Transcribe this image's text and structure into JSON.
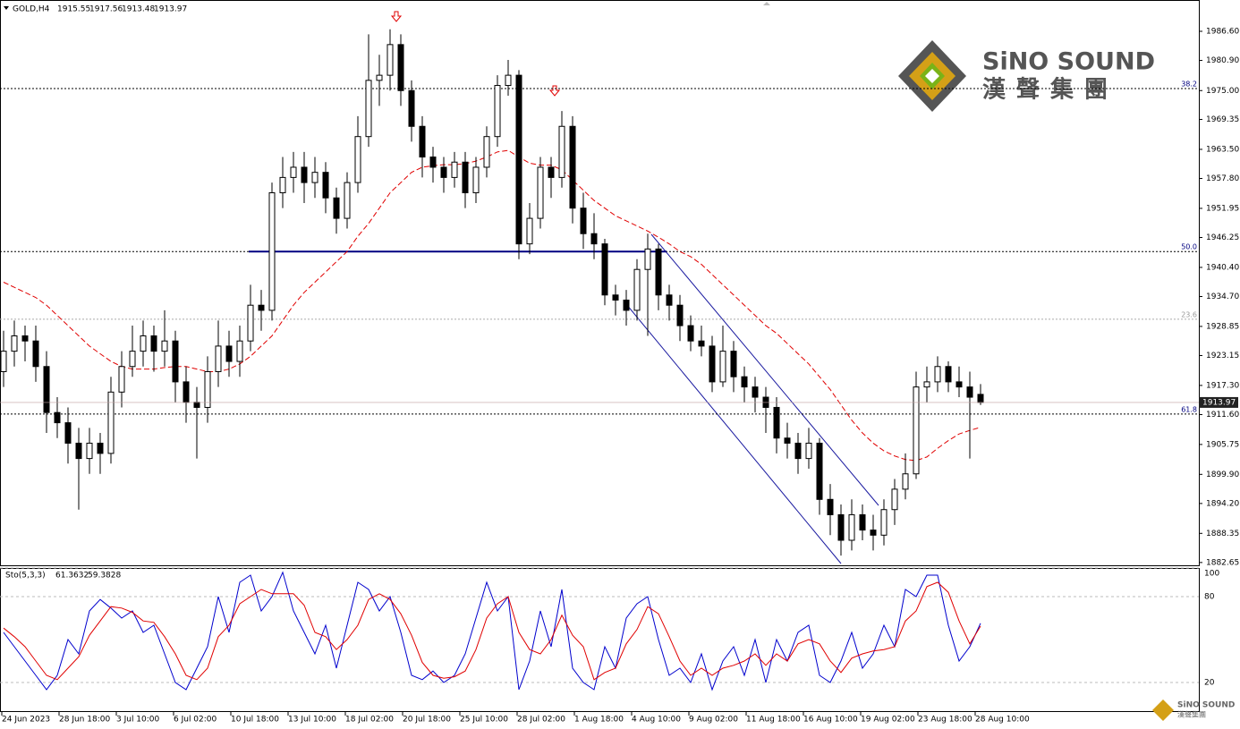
{
  "chart_data": [
    {
      "type": "candlestick",
      "title": "GOLD,H4",
      "open": [
        1920,
        1924,
        1927,
        1926,
        1921,
        1912,
        1910,
        1906,
        1903,
        1906,
        1904,
        1916,
        1921,
        1924,
        1927,
        1924,
        1926,
        1918,
        1914,
        1913,
        1920,
        1925,
        1922,
        1926,
        1933,
        1932,
        1955,
        1958,
        1960,
        1957,
        1959,
        1954,
        1950,
        1957,
        1966,
        1977,
        1978,
        1984,
        1975,
        1968,
        1962,
        1960,
        1958,
        1961,
        1955,
        1960,
        1966,
        1976,
        1978,
        1945,
        1950,
        1960,
        1958,
        1968,
        1952,
        1947,
        1945,
        1935,
        1934,
        1932,
        1940,
        1944,
        1935,
        1933,
        1929,
        1926,
        1925,
        1918,
        1924,
        1919,
        1917,
        1915,
        1913,
        1907,
        1906,
        1903,
        1906,
        1895,
        1892,
        1887,
        1892,
        1889,
        1888,
        1893,
        1897,
        1900,
        1917,
        1918,
        1921,
        1918,
        1917,
        1915.55
      ],
      "high": [
        1928,
        1930,
        1929,
        1929,
        1924,
        1915,
        1913,
        1909,
        1909,
        1908,
        1919,
        1924,
        1929,
        1930,
        1929,
        1932,
        1928,
        1921,
        1917,
        1923,
        1930,
        1928,
        1929,
        1937,
        1936,
        1957,
        1962,
        1963,
        1963,
        1962,
        1961,
        1956,
        1959,
        1970,
        1986,
        1982,
        1987,
        1986,
        1977,
        1970,
        1964,
        1962,
        1963,
        1963,
        1962,
        1968,
        1978,
        1981,
        1979,
        1953,
        1962,
        1962,
        1971,
        1970,
        1955,
        1951,
        1946,
        1937,
        1936,
        1942,
        1947,
        1945,
        1937,
        1935,
        1931,
        1929,
        1927,
        1929,
        1926,
        1921,
        1919,
        1917,
        1915,
        1910,
        1908,
        1909,
        1907,
        1898,
        1894,
        1895,
        1894,
        1892,
        1895,
        1899,
        1904,
        1920,
        1921,
        1923,
        1922,
        1921,
        1920,
        1917.56
      ],
      "low": [
        1917,
        1921,
        1922,
        1918,
        1908,
        1907,
        1902,
        1893,
        1900,
        1900,
        1902,
        1913,
        1919,
        1921,
        1920,
        1921,
        1914,
        1910,
        1903,
        1910,
        1917,
        1919,
        1919,
        1924,
        1928,
        1930,
        1952,
        1955,
        1953,
        1954,
        1951,
        1947,
        1948,
        1955,
        1964,
        1972,
        1975,
        1972,
        1965,
        1958,
        1957,
        1955,
        1956,
        1952,
        1953,
        1958,
        1964,
        1974,
        1942,
        1943,
        1948,
        1954,
        1956,
        1949,
        1944,
        1942,
        1933,
        1931,
        1929,
        1930,
        1927,
        1932,
        1930,
        1926,
        1924,
        1923,
        1916,
        1917,
        1916,
        1914,
        1912,
        1908,
        1904,
        1903,
        1900,
        1901,
        1892,
        1888,
        1884,
        1885,
        1887,
        1885,
        1886,
        1890,
        1895,
        1899,
        1914,
        1916,
        1916,
        1915,
        1903,
        1913.48
      ],
      "close": [
        1924,
        1927,
        1926,
        1921,
        1912,
        1910,
        1906,
        1903,
        1906,
        1904,
        1916,
        1921,
        1924,
        1927,
        1924,
        1926,
        1918,
        1914,
        1913,
        1920,
        1925,
        1922,
        1926,
        1933,
        1932,
        1955,
        1958,
        1960,
        1957,
        1959,
        1954,
        1950,
        1957,
        1966,
        1977,
        1978,
        1984,
        1975,
        1968,
        1962,
        1960,
        1958,
        1961,
        1955,
        1960,
        1966,
        1976,
        1978,
        1945,
        1950,
        1960,
        1958,
        1968,
        1952,
        1947,
        1945,
        1935,
        1934,
        1932,
        1940,
        1944,
        1935,
        1933,
        1929,
        1926,
        1925,
        1918,
        1924,
        1919,
        1917,
        1915,
        1913,
        1907,
        1906,
        1903,
        1906,
        1895,
        1892,
        1887,
        1892,
        1889,
        1888,
        1893,
        1897,
        1900,
        1917,
        1918,
        1921,
        1918,
        1917,
        1915,
        1913.97
      ],
      "overlays": [
        {
          "color": "#e00000",
          "values": [
            1937.5,
            1936.5,
            1935.5,
            1934.5,
            1933,
            1931,
            1929,
            1927,
            1925,
            1923.5,
            1922,
            1921,
            1920.5,
            1920.5,
            1920.5,
            1920.8,
            1921,
            1921,
            1920.5,
            1920,
            1920,
            1920.5,
            1921.5,
            1923,
            1925,
            1927,
            1930,
            1933,
            1935.5,
            1937.5,
            1939.5,
            1941.5,
            1943.5,
            1946.5,
            1949,
            1952,
            1955,
            1957,
            1959,
            1960,
            1960.3,
            1960.5,
            1960.5,
            1960.7,
            1961.2,
            1962,
            1963,
            1963.3,
            1962,
            1960.8,
            1960.4,
            1960.4,
            1959.5,
            1957.5,
            1955.5,
            1953.5,
            1952,
            1950.5,
            1949.5,
            1948.5,
            1947.5,
            1946.3,
            1945,
            1943.5,
            1942.5,
            1941,
            1939,
            1937,
            1935,
            1933,
            1931,
            1929,
            1927.5,
            1925.5,
            1923.5,
            1921.5,
            1919,
            1916.5,
            1913.5,
            1910.5,
            1908,
            1906,
            1904.5,
            1903.5,
            1902.8,
            1902.6,
            1903.3,
            1905,
            1906.5,
            1907.8,
            1908.5,
            1909.1
          ]
        }
      ],
      "levels": [
        {
          "value": 1975.4,
          "label": "38.2",
          "color": "#000080"
        },
        {
          "value": 1943.5,
          "label": "50.0",
          "color": "#000080"
        },
        {
          "value": 1930.25,
          "label": "23.6",
          "color": "#999999"
        },
        {
          "value": 1911.7,
          "label": "61.8",
          "color": "#000080"
        }
      ],
      "ylim": [
        1882.1,
        1992.2
      ],
      "yticks": [
        {
          "value": 1986.6,
          "label": "1986.60"
        },
        {
          "value": 1980.9,
          "label": "1980.90"
        },
        {
          "value": 1975,
          "label": "1975.00"
        },
        1969.35,
        {
          "value": 1963.5,
          "label": "1963.50"
        },
        {
          "value": 1957.8,
          "label": "1957.80"
        },
        1951.95,
        1946.25,
        {
          "value": 1940.4,
          "label": "1940.40"
        },
        {
          "value": 1934.7,
          "label": "1934.70"
        },
        1928.85,
        1923.15,
        {
          "value": 1917.3,
          "label": "1917.30"
        },
        {
          "value": 1911.6,
          "label": "1911.60"
        },
        1905.75,
        {
          "value": 1899.9,
          "label": "1899.90"
        },
        {
          "value": 1894.2,
          "label": "1894.20"
        },
        1888.35,
        1882.65
      ],
      "x_axis_labels": [
        "24 Jun 2023",
        "28 Jun 18:00",
        "3 Jul 10:00",
        "6 Jul 02:00",
        "10 Jul 18:00",
        "13 Jul 10:00",
        "18 Jul 02:00",
        "20 Jul 18:00",
        "25 Jul 10:00",
        "28 Jul 02:00",
        "1 Aug 18:00",
        "4 Aug 10:00",
        "9 Aug 02:00",
        "11 Aug 18:00",
        "16 Aug 10:00",
        "19 Aug 02:00",
        "23 Aug 18:00",
        "28 Aug 10:00"
      ],
      "logo": {
        "name": "SiNO SOUND",
        "chinese": "漢聲集團"
      }
    },
    {
      "type": "line",
      "title": "Sto(5,3,3)",
      "series": [
        {
          "color": "#0000cd",
          "values": [
            55,
            45,
            35,
            25,
            15,
            25,
            50,
            40,
            70,
            78,
            72,
            65,
            70,
            55,
            60,
            40,
            20,
            15,
            30,
            45,
            80,
            55,
            90,
            95,
            70,
            80,
            97,
            70,
            55,
            40,
            60,
            30,
            60,
            90,
            85,
            70,
            80,
            55,
            25,
            22,
            28,
            20,
            25,
            40,
            65,
            90,
            70,
            80,
            15,
            35,
            70,
            45,
            85,
            30,
            20,
            15,
            45,
            30,
            65,
            75,
            80,
            50,
            25,
            30,
            20,
            40,
            15,
            35,
            45,
            25,
            50,
            20,
            50,
            35,
            55,
            60,
            25,
            20,
            35,
            55,
            30,
            40,
            60,
            45,
            85,
            80,
            95,
            95,
            60,
            35,
            45,
            61.3632
          ]
        },
        {
          "color": "#e00000",
          "values": [
            58,
            52,
            45,
            35,
            25,
            22,
            30,
            38,
            53,
            63,
            73,
            72,
            69,
            63,
            62,
            52,
            40,
            25,
            22,
            30,
            52,
            60,
            75,
            80,
            85,
            82,
            82,
            82,
            74,
            55,
            52,
            43,
            50,
            60,
            78,
            82,
            78,
            68,
            53,
            34,
            25,
            23,
            24,
            28,
            43,
            65,
            75,
            80,
            55,
            43,
            40,
            50,
            67,
            53,
            45,
            22,
            27,
            30,
            47,
            57,
            73,
            68,
            52,
            35,
            25,
            30,
            25,
            30,
            32,
            35,
            40,
            32,
            40,
            35,
            47,
            50,
            47,
            35,
            27,
            37,
            40,
            42,
            43,
            45,
            63,
            70,
            87,
            90,
            83,
            63,
            47,
            59.3828
          ]
        }
      ],
      "ylim": [
        0,
        100
      ],
      "yticks": [
        20,
        80,
        100
      ]
    }
  ]
}
